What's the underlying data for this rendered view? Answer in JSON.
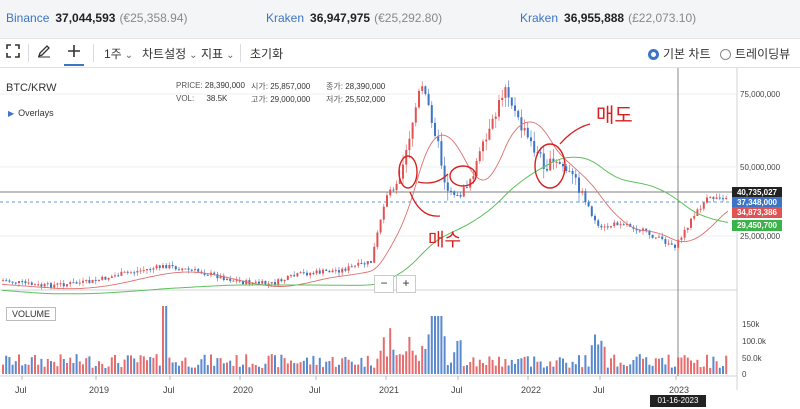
{
  "tickers": [
    {
      "exchange": "Binance",
      "price": "37,044,593",
      "krw": "(€25,358.94)"
    },
    {
      "exchange": "Kraken",
      "price": "36,947,975",
      "krw": "(€25,292.80)"
    },
    {
      "exchange": "Kraken",
      "price": "36,955,888",
      "krw": "(£22,073.10)"
    }
  ],
  "toolbar": {
    "expand_icon": "expand-icon",
    "draw_icon": "pencil-icon",
    "crosshair_icon": "crosshair-icon",
    "interval_label": "1주",
    "chart_settings_label": "차트설정",
    "indicators_label": "지표",
    "reset_label": "초기화",
    "basic_chart_label": "기본 차트",
    "tradingview_label": "트레이딩뷰"
  },
  "chart": {
    "symbol": "BTC/KRW",
    "overlays_label": "Overlays",
    "ohlc": {
      "price_k": "PRICE:",
      "price_v": "28,390,000",
      "vol_k": "VOL:",
      "vol_v": "38.5K",
      "open_k": "시가:",
      "open_v": "25,857,000",
      "high_k": "고가:",
      "high_v": "29,000,000",
      "close_k": "종가:",
      "close_v": "28,390,000",
      "low_k": "저가:",
      "low_v": "25,502,000"
    },
    "price_axis": [
      "75,000,000",
      "50,000,000",
      "25,000,000"
    ],
    "right_labels": [
      {
        "value": "40,735,027",
        "color": "#222222"
      },
      {
        "value": "37,348,000",
        "color": "#3d74c6"
      },
      {
        "value": "34,873,386",
        "color": "#e05353"
      },
      {
        "value": "29,450,700",
        "color": "#3cb34a"
      }
    ],
    "zoom_out": "−",
    "zoom_in": "+",
    "volume_label": "VOLUME",
    "volume_axis": [
      "150k",
      "100.0k",
      "50.0k",
      "0"
    ],
    "date_axis": [
      "Jul",
      "2019",
      "Jul",
      "2020",
      "Jul",
      "2021",
      "Jul",
      "2022",
      "Jul",
      "2023"
    ],
    "crosshair_date": "01-16-2023",
    "annotations": {
      "buy": "매수",
      "sell": "매도"
    }
  },
  "colors": {
    "up": "#e05353",
    "down": "#3d74c6",
    "ma_short": "#e07070",
    "ma_long": "#5cc05c",
    "accent": "#3d74c6"
  }
}
